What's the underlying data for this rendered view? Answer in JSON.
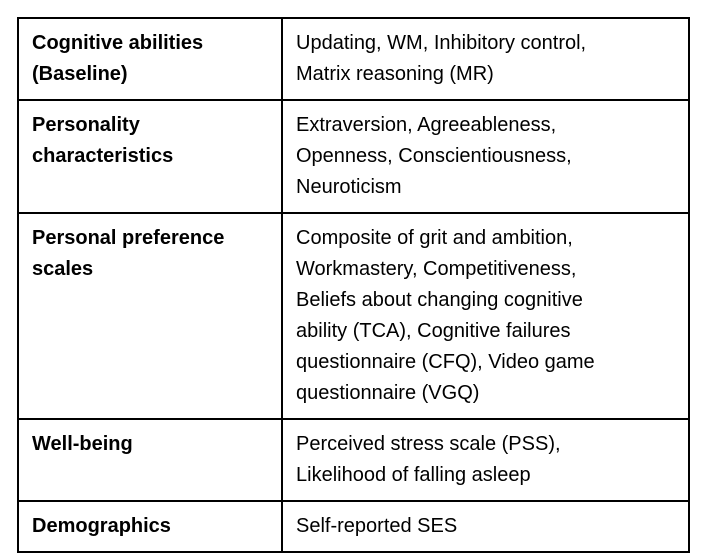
{
  "table": {
    "rows": [
      {
        "category_lines": [
          "Cognitive abilities",
          "(Baseline)"
        ],
        "measure_lines": [
          "Updating, WM, Inhibitory control,",
          "Matrix reasoning (MR)"
        ]
      },
      {
        "category_lines": [
          "Personality",
          "characteristics"
        ],
        "measure_lines": [
          "Extraversion, Agreeableness,",
          "Openness, Conscientiousness,",
          "Neuroticism"
        ]
      },
      {
        "category_lines": [
          "Personal preference",
          "scales"
        ],
        "measure_lines": [
          "Composite of grit and ambition,",
          "Workmastery, Competitiveness,",
          "Beliefs about changing cognitive",
          "ability (TCA), Cognitive failures",
          "questionnaire (CFQ), Video game",
          "questionnaire (VGQ)"
        ]
      },
      {
        "category_lines": [
          "Well-being"
        ],
        "measure_lines": [
          "Perceived stress scale (PSS),",
          "Likelihood of falling asleep"
        ]
      },
      {
        "category_lines": [
          "Demographics"
        ],
        "measure_lines": [
          "Self-reported SES"
        ]
      }
    ]
  }
}
